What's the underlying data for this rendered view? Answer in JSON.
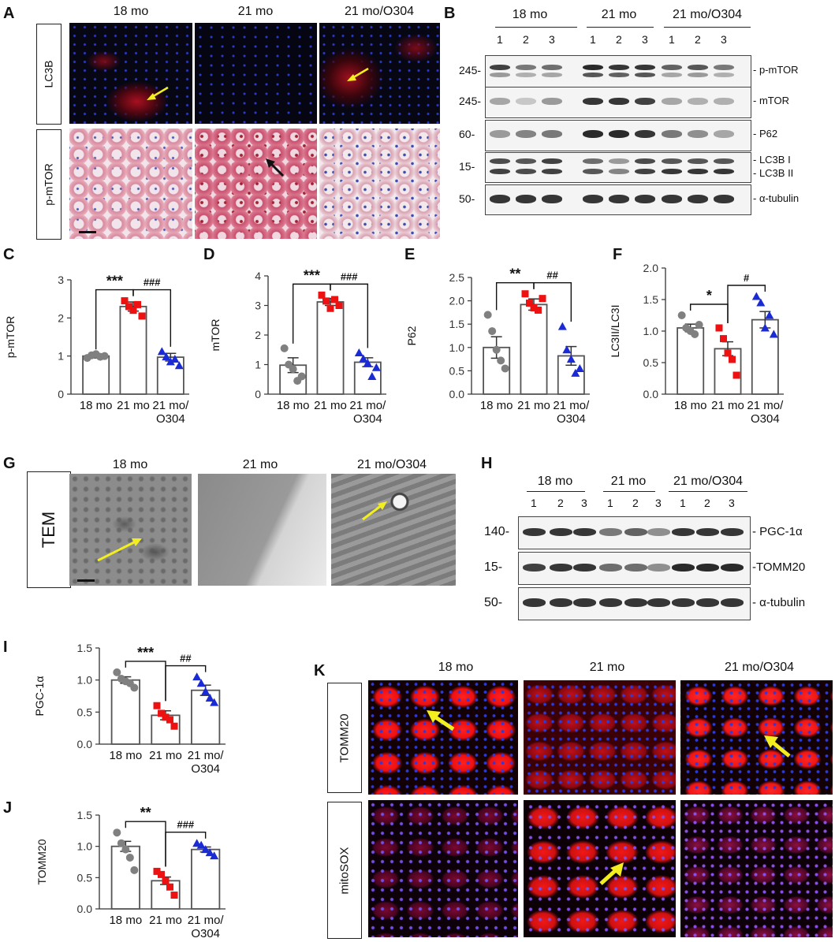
{
  "panels": {
    "A": "A",
    "B": "B",
    "C": "C",
    "D": "D",
    "E": "E",
    "F": "F",
    "G": "G",
    "H": "H",
    "I": "I",
    "J": "J",
    "K": "K"
  },
  "groups": [
    "18 mo",
    "21 mo",
    "21 mo/O304"
  ],
  "panelA": {
    "rows": [
      "LC3B",
      "p-mTOR"
    ]
  },
  "panelB": {
    "lanes": [
      "1",
      "2",
      "3",
      "1",
      "2",
      "3",
      "1",
      "2",
      "3"
    ],
    "rows": [
      {
        "mw": "245-",
        "label": "- p-mTOR"
      },
      {
        "mw": "245-",
        "label": "- mTOR"
      },
      {
        "mw": "60-",
        "label": "- P62"
      },
      {
        "mw": "15-",
        "label": "- LC3B I",
        "label2": "- LC3B II"
      },
      {
        "mw": "50-",
        "label": "- α-tubulin"
      }
    ]
  },
  "panelG": {
    "row": "TEM"
  },
  "panelH": {
    "lanes": [
      "1",
      "2",
      "3",
      "1",
      "2",
      "3",
      "1",
      "2",
      "3"
    ],
    "rows": [
      {
        "mw": "140-",
        "label": "- PGC-1α"
      },
      {
        "mw": "15-",
        "label": "-TOMM20"
      },
      {
        "mw": "50-",
        "label": "- α-tubulin"
      }
    ]
  },
  "panelK": {
    "rows": [
      "TOMM20",
      "mitoSOX"
    ]
  },
  "xcats": [
    "18 mo",
    "21 mo",
    "21 mo/\nO304"
  ],
  "colors": {
    "g1": "#808080",
    "g2": "#ee1111",
    "g3": "#1a2bd6"
  },
  "chart_data": [
    {
      "id": "C",
      "type": "bar",
      "ylabel": "p-mTOR",
      "ylim": [
        0,
        3
      ],
      "yticks": [
        "0",
        "1",
        "2",
        "3"
      ],
      "categories": [
        "18 mo",
        "21 mo",
        "21 mo/ O304"
      ],
      "values": [
        1.0,
        2.3,
        0.97
      ],
      "sem": [
        0.05,
        0.12,
        0.1
      ],
      "points": [
        [
          0.95,
          1.02,
          1.05,
          0.98,
          1.0
        ],
        [
          2.45,
          2.3,
          2.2,
          2.35,
          2.05
        ],
        [
          1.12,
          0.98,
          0.85,
          0.92,
          0.75
        ]
      ],
      "sig": [
        {
          "text": "***"
        },
        {
          "text": "###"
        }
      ]
    },
    {
      "id": "D",
      "type": "bar",
      "ylabel": "mTOR",
      "ylim": [
        0,
        4
      ],
      "yticks": [
        "0",
        "1",
        "2",
        "3",
        "4"
      ],
      "categories": [
        "18 mo",
        "21 mo",
        "21 mo/ O304"
      ],
      "values": [
        0.98,
        3.12,
        1.08
      ],
      "sem": [
        0.25,
        0.12,
        0.15
      ],
      "points": [
        [
          1.55,
          1.0,
          0.85,
          0.45,
          0.6
        ],
        [
          3.35,
          3.15,
          2.9,
          3.2,
          3.0
        ],
        [
          1.4,
          1.2,
          1.05,
          0.6,
          0.9
        ]
      ],
      "sig": [
        {
          "text": "***"
        },
        {
          "text": "###"
        }
      ]
    },
    {
      "id": "E",
      "type": "bar",
      "ylabel": "P62",
      "ylim": [
        0,
        2.5
      ],
      "yticks": [
        "0.0",
        "0.5",
        "1.0",
        "1.5",
        "2.0",
        "2.5"
      ],
      "categories": [
        "18 mo",
        "21 mo",
        "21 mo/ O304"
      ],
      "values": [
        1.0,
        1.92,
        0.82
      ],
      "sem": [
        0.23,
        0.12,
        0.2
      ],
      "points": [
        [
          1.7,
          1.35,
          0.95,
          0.72,
          0.55
        ],
        [
          2.15,
          1.95,
          1.85,
          1.8,
          2.05
        ],
        [
          1.45,
          0.95,
          0.75,
          0.45,
          0.55
        ]
      ],
      "sig": [
        {
          "text": "**"
        },
        {
          "text": "##"
        }
      ]
    },
    {
      "id": "F",
      "type": "bar",
      "ylabel": "LC3II/LC3I",
      "ylim": [
        0,
        2.0
      ],
      "yticks": [
        "0.0",
        "0.5",
        "1.0",
        "1.5",
        "2.0"
      ],
      "categories": [
        "18 mo",
        "21 mo",
        "21 mo/ O304"
      ],
      "values": [
        1.05,
        0.72,
        1.18
      ],
      "sem": [
        0.06,
        0.11,
        0.13
      ],
      "points": [
        [
          1.25,
          1.05,
          1.0,
          0.95,
          1.1
        ],
        [
          1.05,
          0.88,
          0.65,
          0.55,
          0.3
        ],
        [
          1.55,
          1.45,
          1.05,
          1.25,
          0.95
        ]
      ],
      "sig": [
        {
          "text": "*"
        },
        {
          "text": "#"
        }
      ]
    },
    {
      "id": "I",
      "type": "bar",
      "ylabel": "PGC-1α",
      "ylim": [
        0,
        1.5
      ],
      "yticks": [
        "0.0",
        "0.5",
        "1.0",
        "1.5"
      ],
      "categories": [
        "18 mo",
        "21 mo",
        "21 mo/ O304"
      ],
      "values": [
        1.0,
        0.45,
        0.84
      ],
      "sem": [
        0.05,
        0.07,
        0.08
      ],
      "points": [
        [
          1.12,
          1.02,
          0.98,
          0.95,
          0.88
        ],
        [
          0.6,
          0.48,
          0.42,
          0.38,
          0.28
        ],
        [
          1.05,
          0.95,
          0.82,
          0.72,
          0.65
        ]
      ],
      "sig": [
        {
          "text": "***"
        },
        {
          "text": "##"
        }
      ]
    },
    {
      "id": "J",
      "type": "bar",
      "ylabel": "TOMM20",
      "ylim": [
        0,
        1.5
      ],
      "yticks": [
        "0.0",
        "0.5",
        "1.0",
        "1.5"
      ],
      "categories": [
        "18 mo",
        "21 mo",
        "21 mo/ O304"
      ],
      "values": [
        1.0,
        0.45,
        0.95
      ],
      "sem": [
        0.08,
        0.06,
        0.04
      ],
      "points": [
        [
          1.22,
          1.05,
          0.95,
          0.82,
          0.62
        ],
        [
          0.6,
          0.55,
          0.45,
          0.35,
          0.22
        ],
        [
          1.05,
          1.02,
          0.95,
          0.9,
          0.85
        ]
      ],
      "sig": [
        {
          "text": "**"
        },
        {
          "text": "###"
        }
      ]
    }
  ]
}
